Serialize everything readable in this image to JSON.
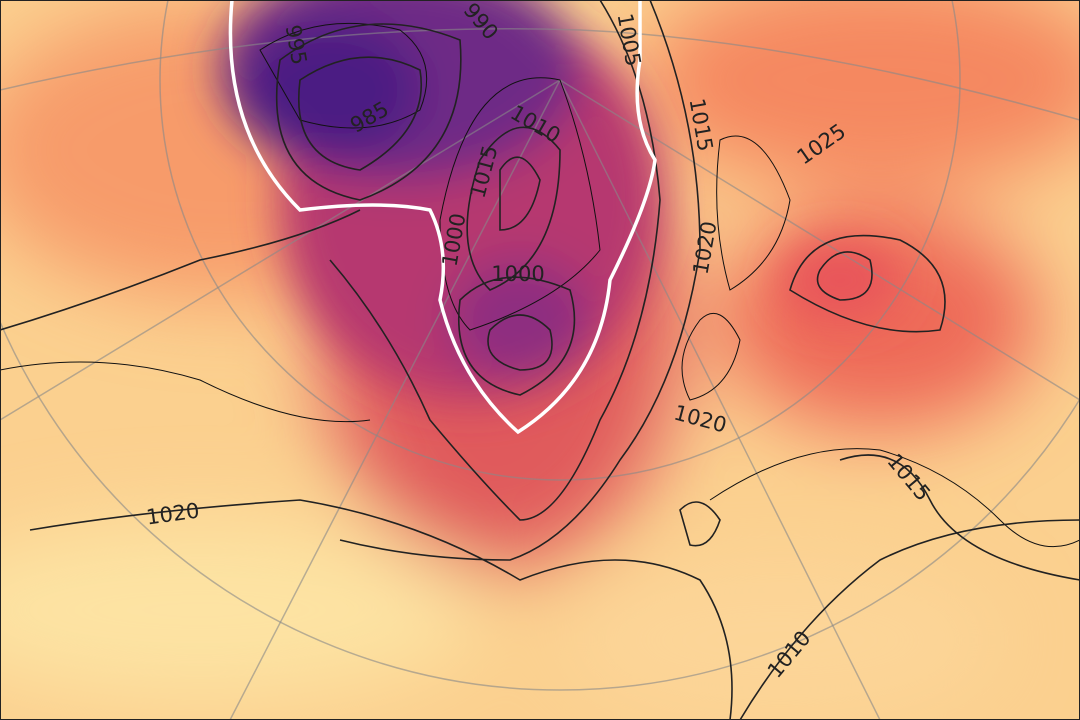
{
  "map": {
    "contour_labels": [
      "990",
      "995",
      "985",
      "1005",
      "1010",
      "1015",
      "1000",
      "1000",
      "1015",
      "1020",
      "1020",
      "1025",
      "1015",
      "1010",
      "1020"
    ]
  }
}
